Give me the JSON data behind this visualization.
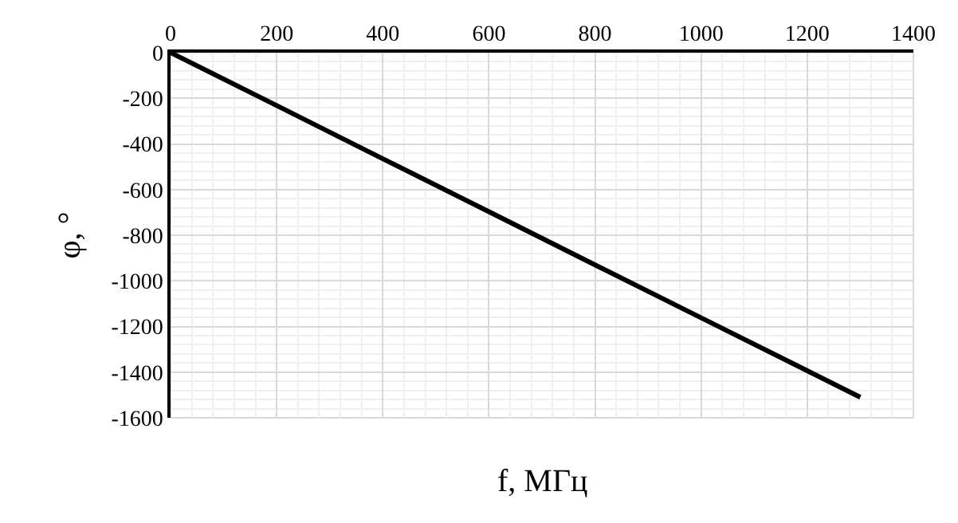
{
  "chart_data": {
    "type": "line",
    "xlabel": "f, МГц",
    "ylabel": "φ, °",
    "x": [
      0,
      200,
      400,
      600,
      800,
      1000,
      1200,
      1300
    ],
    "series": [
      {
        "color": "#000000",
        "values": [
          0,
          -232,
          -465,
          -697,
          -930,
          -1162,
          -1394,
          -1510
        ]
      }
    ],
    "xlim": [
      0,
      1400
    ],
    "xticks": [
      0,
      200,
      400,
      600,
      800,
      1000,
      1200,
      1400
    ],
    "ylim": [
      -1600,
      0
    ],
    "yticks": [
      -1600,
      -1400,
      -1200,
      -1000,
      -800,
      -600,
      -400,
      -200,
      0
    ],
    "grid": true,
    "marker": "none",
    "line_style": "solid"
  }
}
